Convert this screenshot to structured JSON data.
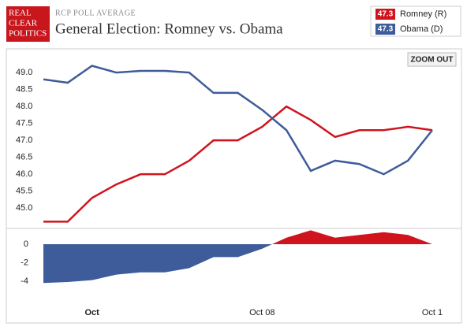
{
  "header": {
    "logo": [
      "REAL",
      "CLEAR",
      "POLITICS"
    ],
    "kicker": "RCP POLL AVERAGE",
    "title": "General Election: Romney vs. Obama"
  },
  "zoom_button": "ZOOM OUT",
  "chart_data": [
    {
      "type": "line",
      "categories": [
        null,
        null,
        "Oct",
        null,
        null,
        null,
        null,
        null,
        null,
        "Oct 08",
        null,
        null,
        null,
        null,
        null,
        null,
        "Oct 1"
      ],
      "series": [
        {
          "name": "Romney (R)",
          "color": "#d0141e",
          "legend_value": 47.3,
          "values": [
            44.6,
            44.6,
            45.3,
            45.7,
            46.0,
            46.0,
            46.4,
            47.0,
            47.0,
            47.4,
            48.0,
            47.6,
            47.1,
            47.3,
            47.3,
            47.4,
            47.3
          ]
        },
        {
          "name": "Obama (D)",
          "color": "#3e5c9a",
          "legend_value": 47.3,
          "values": [
            48.8,
            48.7,
            49.2,
            49.0,
            49.05,
            49.05,
            49.0,
            48.4,
            48.4,
            47.9,
            47.3,
            46.1,
            46.4,
            46.3,
            46.0,
            46.4,
            47.3
          ]
        }
      ],
      "ylim": [
        44.4,
        49.7
      ],
      "yticks": [
        {
          "value": 45,
          "label": "45.0"
        },
        {
          "value": 45.5,
          "label": "45.5"
        },
        {
          "value": 46,
          "label": "46.0"
        },
        {
          "value": 46.5,
          "label": "46.5"
        },
        {
          "value": 47,
          "label": "47.0"
        },
        {
          "value": 47.5,
          "label": "47.5"
        },
        {
          "value": 48,
          "label": "48.0"
        },
        {
          "value": 48.5,
          "label": "48.5"
        },
        {
          "value": 49,
          "label": "49.0"
        }
      ],
      "grid": false
    },
    {
      "type": "area",
      "values": [
        -4.2,
        -4.1,
        -3.9,
        -3.3,
        -3.05,
        -3.05,
        -2.6,
        -1.4,
        -1.4,
        -0.5,
        0.7,
        1.5,
        0.7,
        1.0,
        1.3,
        1.0,
        0
      ],
      "positive_color": "#d0141e",
      "negative_color": "#3e5c9a",
      "ylim": [
        -6.4,
        1.7
      ],
      "yticks": [
        0,
        -2,
        -4
      ],
      "grid": false
    }
  ]
}
